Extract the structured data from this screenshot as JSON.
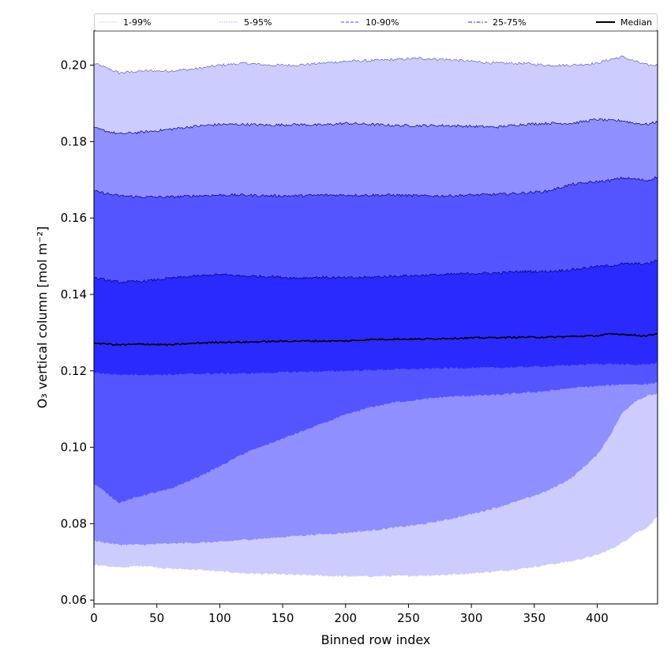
{
  "chart_data": {
    "type": "area",
    "xlabel": "Binned row index",
    "ylabel": "O₃ vertical column [mol m⁻²]",
    "xlim": [
      0,
      448
    ],
    "ylim": [
      0.059,
      0.209
    ],
    "xticks": [
      0,
      50,
      100,
      150,
      200,
      250,
      300,
      350,
      400
    ],
    "yticks": [
      0.06,
      0.08,
      0.1,
      0.12,
      0.14,
      0.16,
      0.18,
      0.2
    ],
    "ytick_labels": [
      "0.06",
      "0.08",
      "0.10",
      "0.12",
      "0.14",
      "0.16",
      "0.18",
      "0.20"
    ],
    "legend_position": "top, full width, single row",
    "x": [
      0,
      20,
      40,
      60,
      80,
      100,
      120,
      140,
      160,
      180,
      200,
      220,
      240,
      260,
      280,
      300,
      320,
      340,
      360,
      380,
      400,
      410,
      420,
      430,
      440,
      448
    ],
    "bands": [
      {
        "name": "1-99%",
        "color": "#ccccff",
        "line_style": "solid",
        "lower": [
          0.0693,
          0.0685,
          0.069,
          0.0682,
          0.068,
          0.0675,
          0.067,
          0.0668,
          0.0666,
          0.0664,
          0.0662,
          0.0662,
          0.0663,
          0.0664,
          0.0666,
          0.067,
          0.0675,
          0.0682,
          0.0692,
          0.0702,
          0.0718,
          0.0732,
          0.075,
          0.0775,
          0.079,
          0.082
        ],
        "upper": [
          0.2005,
          0.198,
          0.1985,
          0.1985,
          0.199,
          0.2,
          0.2005,
          0.2,
          0.2,
          0.2005,
          0.201,
          0.2012,
          0.2015,
          0.2018,
          0.2015,
          0.201,
          0.2005,
          0.2005,
          0.2,
          0.2,
          0.2005,
          0.2015,
          0.2022,
          0.201,
          0.2,
          0.2
        ]
      },
      {
        "name": "5-95%",
        "color": "#8f8fff",
        "line_style": "dotted",
        "lower": [
          0.0755,
          0.0745,
          0.0745,
          0.0748,
          0.075,
          0.0752,
          0.0758,
          0.0762,
          0.0768,
          0.0772,
          0.0776,
          0.0782,
          0.079,
          0.0798,
          0.081,
          0.0825,
          0.0842,
          0.0862,
          0.0885,
          0.092,
          0.098,
          0.103,
          0.109,
          0.112,
          0.1135,
          0.114
        ],
        "upper": [
          0.1835,
          0.182,
          0.1825,
          0.1832,
          0.184,
          0.1845,
          0.1845,
          0.1843,
          0.1845,
          0.1843,
          0.1848,
          0.1845,
          0.1842,
          0.1842,
          0.1842,
          0.184,
          0.1838,
          0.1845,
          0.1848,
          0.1848,
          0.1858,
          0.1855,
          0.1855,
          0.1848,
          0.1845,
          0.1852
        ]
      },
      {
        "name": "10-90%",
        "color": "#5555ff",
        "line_style": "dashed",
        "lower": [
          0.0905,
          0.0855,
          0.0875,
          0.089,
          0.0918,
          0.095,
          0.0985,
          0.101,
          0.1035,
          0.106,
          0.1085,
          0.1105,
          0.1118,
          0.1125,
          0.1132,
          0.1135,
          0.1137,
          0.1142,
          0.1147,
          0.1155,
          0.116,
          0.1162,
          0.1165,
          0.1165,
          0.1165,
          0.117
        ],
        "upper": [
          0.167,
          0.1658,
          0.1655,
          0.1655,
          0.1658,
          0.166,
          0.166,
          0.1658,
          0.1658,
          0.166,
          0.166,
          0.166,
          0.166,
          0.1658,
          0.1658,
          0.166,
          0.1662,
          0.1665,
          0.167,
          0.1688,
          0.1695,
          0.1698,
          0.1705,
          0.1702,
          0.1698,
          0.1708
        ]
      },
      {
        "name": "25-75%",
        "color": "#2a2aff",
        "line_style": "dashdot",
        "lower": [
          0.1195,
          0.119,
          0.119,
          0.119,
          0.1192,
          0.1193,
          0.1193,
          0.1195,
          0.1197,
          0.1198,
          0.12,
          0.1202,
          0.1204,
          0.1205,
          0.1207,
          0.1208,
          0.1208,
          0.121,
          0.1212,
          0.1215,
          0.1218,
          0.1218,
          0.1217,
          0.1215,
          0.1218,
          0.122
        ],
        "upper": [
          0.1443,
          0.1432,
          0.1435,
          0.1442,
          0.1448,
          0.1452,
          0.1448,
          0.1447,
          0.1443,
          0.1445,
          0.1443,
          0.1445,
          0.1448,
          0.145,
          0.1452,
          0.1455,
          0.1456,
          0.146,
          0.146,
          0.1465,
          0.1473,
          0.1475,
          0.148,
          0.148,
          0.148,
          0.149
        ]
      }
    ],
    "median": {
      "name": "Median",
      "color": "#000000",
      "values": [
        0.1273,
        0.1268,
        0.127,
        0.1268,
        0.1272,
        0.1275,
        0.1275,
        0.1277,
        0.1278,
        0.1278,
        0.1278,
        0.1282,
        0.1283,
        0.1283,
        0.1285,
        0.1286,
        0.1287,
        0.1288,
        0.1288,
        0.129,
        0.1292,
        0.1296,
        0.1296,
        0.1293,
        0.1292,
        0.1298
      ]
    }
  }
}
